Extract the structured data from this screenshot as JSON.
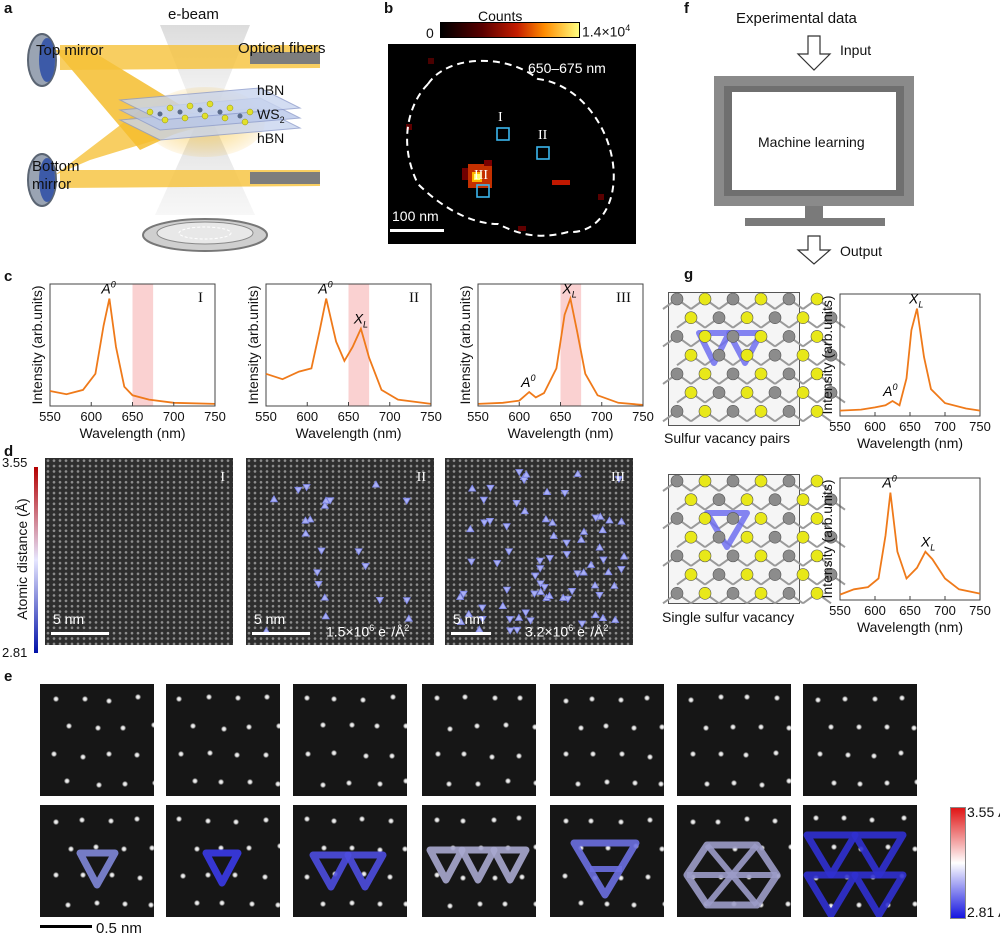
{
  "panel_labels": {
    "a": "a",
    "b": "b",
    "c": "c",
    "d": "d",
    "e": "e",
    "f": "f",
    "g": "g"
  },
  "panel_a": {
    "ebeam": "e-beam",
    "top_mirror": "Top mirror",
    "bottom_mirror_line1": "Bottom",
    "bottom_mirror_line2": "mirror",
    "optical_fibers": "Optical fibers",
    "layer1": "hBN",
    "layer2": "WS",
    "layer2_sub": "2",
    "layer3": "hBN"
  },
  "panel_b": {
    "colorbar_title": "Counts",
    "colorbar_min": "0",
    "colorbar_max": "1.4×10",
    "colorbar_max_exp": "4",
    "range": "650–675 nm",
    "scale": "100 nm",
    "regions": [
      "I",
      "II",
      "III"
    ]
  },
  "panel_c": {
    "ylabel": "Intensity (arb.units)",
    "xlabel": "Wavelength (nm)",
    "xticks": [
      "550",
      "600",
      "650",
      "700",
      "750"
    ]
  },
  "panel_d": {
    "colorbar_label": "Atomic distance (Å)",
    "cb_max": "3.55",
    "cb_min": "2.81",
    "scale": "5 nm",
    "dose2": "1.5×10",
    "dose2_exp": "6",
    "dose2_unit": " e",
    "dose2_unit2": "/Å",
    "dose3": "3.2×10",
    "dose3_exp": "6",
    "dose_unit_sup": "−",
    "dose_unit_sq": "2",
    "regions": [
      "I",
      "II",
      "III"
    ]
  },
  "panel_e": {
    "scale": "0.5 nm",
    "cb_max": "3.55 Å",
    "cb_min": "2.81 Å"
  },
  "panel_f": {
    "experimental": "Experimental data",
    "input": "Input",
    "ml": "Machine learning",
    "output": "Output"
  },
  "panel_g": {
    "struct1": "Sulfur vacancy pairs",
    "struct2": "Single sulfur vacancy",
    "ylabel": "Intensity (arb.units)",
    "xlabel": "Wavelength (nm)",
    "xticks": [
      "550",
      "600",
      "650",
      "700",
      "750"
    ]
  },
  "chart_data": [
    {
      "type": "line",
      "title": "c-I",
      "xlabel": "Wavelength (nm)",
      "ylabel": "Intensity (arb.units)",
      "xlim": [
        550,
        750
      ],
      "x": [
        550,
        570,
        590,
        605,
        615,
        622,
        630,
        640,
        650,
        670,
        700,
        750
      ],
      "y": [
        0.14,
        0.11,
        0.15,
        0.3,
        0.75,
        1.0,
        0.55,
        0.18,
        0.1,
        0.06,
        0.03,
        0.02
      ],
      "peaks": [
        {
          "label": "A0",
          "x": 622
        }
      ],
      "highlight": [
        650,
        675
      ],
      "region": "I"
    },
    {
      "type": "line",
      "title": "c-II",
      "xlabel": "Wavelength (nm)",
      "ylabel": "Intensity (arb.units)",
      "xlim": [
        550,
        750
      ],
      "x": [
        550,
        570,
        590,
        605,
        615,
        623,
        635,
        645,
        655,
        665,
        675,
        690,
        710,
        750
      ],
      "y": [
        0.3,
        0.25,
        0.32,
        0.35,
        0.7,
        1.0,
        0.6,
        0.42,
        0.55,
        0.72,
        0.45,
        0.15,
        0.06,
        0.02
      ],
      "peaks": [
        {
          "label": "A0",
          "x": 623
        },
        {
          "label": "XL",
          "x": 666
        }
      ],
      "highlight": [
        650,
        675
      ],
      "region": "II"
    },
    {
      "type": "line",
      "title": "c-III",
      "xlabel": "Wavelength (nm)",
      "ylabel": "Intensity (arb.units)",
      "xlim": [
        550,
        750
      ],
      "x": [
        550,
        580,
        600,
        612,
        620,
        630,
        645,
        655,
        662,
        670,
        680,
        695,
        720,
        750
      ],
      "y": [
        0.02,
        0.03,
        0.05,
        0.13,
        0.08,
        0.12,
        0.35,
        0.85,
        1.0,
        0.7,
        0.3,
        0.1,
        0.03,
        0.01
      ],
      "peaks": [
        {
          "label": "A0",
          "x": 612
        },
        {
          "label": "XL",
          "x": 662
        }
      ],
      "highlight": [
        650,
        675
      ],
      "region": "III"
    },
    {
      "type": "line",
      "title": "g-pairs",
      "xlabel": "Wavelength (nm)",
      "ylabel": "Intensity (arb.units)",
      "xlim": [
        550,
        750
      ],
      "x": [
        550,
        580,
        600,
        615,
        625,
        635,
        645,
        652,
        660,
        670,
        680,
        700,
        730,
        750
      ],
      "y": [
        0.05,
        0.06,
        0.08,
        0.1,
        0.14,
        0.1,
        0.35,
        0.8,
        1.0,
        0.55,
        0.25,
        0.12,
        0.07,
        0.05
      ],
      "peaks": [
        {
          "label": "A0",
          "x": 623
        },
        {
          "label": "XL",
          "x": 660
        }
      ]
    },
    {
      "type": "line",
      "title": "g-single",
      "xlabel": "Wavelength (nm)",
      "ylabel": "Intensity (arb.units)",
      "xlim": [
        550,
        750
      ],
      "x": [
        550,
        570,
        590,
        605,
        615,
        622,
        632,
        645,
        660,
        672,
        682,
        700,
        720,
        750
      ],
      "y": [
        0.05,
        0.1,
        0.12,
        0.2,
        0.6,
        1.0,
        0.45,
        0.2,
        0.3,
        0.45,
        0.38,
        0.2,
        0.1,
        0.06
      ],
      "peaks": [
        {
          "label": "A0",
          "x": 622
        },
        {
          "label": "XL",
          "x": 677
        }
      ]
    }
  ]
}
